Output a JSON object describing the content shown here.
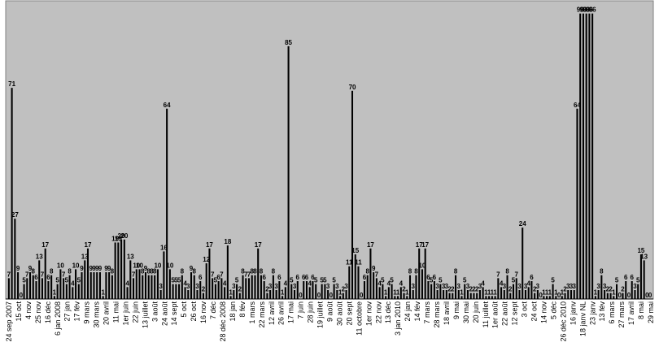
{
  "chart_data": {
    "type": "bar",
    "title": "",
    "xlabel": "",
    "ylabel": "",
    "ylim": [
      0,
      100
    ],
    "grid": false,
    "legend": "none",
    "bar_color": "#000000",
    "plot_background": "#c0c0c0",
    "values": [
      7,
      71,
      27,
      9,
      0,
      5,
      7,
      9,
      8,
      6,
      13,
      7,
      17,
      6,
      8,
      1,
      5,
      10,
      7,
      5,
      8,
      4,
      10,
      5,
      9,
      13,
      17,
      9,
      9,
      9,
      9,
      1,
      9,
      9,
      8,
      19,
      19,
      20,
      20,
      4,
      13,
      7,
      10,
      10,
      8,
      9,
      8,
      8,
      8,
      10,
      3,
      16,
      64,
      10,
      5,
      5,
      5,
      8,
      4,
      3,
      9,
      8,
      3,
      6,
      2,
      12,
      17,
      7,
      5,
      6,
      7,
      4,
      18,
      1,
      3,
      5,
      2,
      8,
      7,
      7,
      8,
      8,
      17,
      8,
      6,
      2,
      3,
      8,
      3,
      6,
      1,
      4,
      85,
      5,
      3,
      6,
      0,
      6,
      6,
      4,
      6,
      5,
      0,
      5,
      5,
      3,
      0,
      5,
      3,
      1,
      2,
      3,
      11,
      70,
      15,
      11,
      0,
      6,
      8,
      17,
      9,
      7,
      4,
      5,
      1,
      4,
      5,
      1,
      1,
      4,
      2,
      1,
      8,
      3,
      8,
      17,
      10,
      17,
      6,
      5,
      6,
      3,
      5,
      3,
      3,
      2,
      2,
      8,
      3,
      1,
      5,
      3,
      2,
      2,
      2,
      3,
      4,
      1,
      1,
      1,
      1,
      7,
      4,
      3,
      8,
      2,
      5,
      7,
      3,
      24,
      3,
      4,
      6,
      2,
      3,
      0,
      1,
      1,
      1,
      5,
      1,
      0,
      1,
      2,
      3,
      3,
      3,
      64,
      96,
      96,
      96,
      96,
      96,
      1,
      3,
      8,
      3,
      2,
      2,
      1,
      5,
      0,
      2,
      6,
      0,
      6,
      3,
      5,
      15,
      13,
      0,
      0
    ],
    "tick_labels": [
      "24 sep 2007",
      "15 oct",
      "4 nov",
      "25 nov",
      "16 déc",
      "6 jan 2008",
      "27 jan",
      "17 fév",
      "9 mars",
      "30 mars",
      "20 avril",
      "11 mai",
      "1er juin",
      "22 juin",
      "13 juillet",
      "3 août",
      "24 août",
      "14 sept",
      "5 oct",
      "26 oct",
      "16 nov",
      "7 déc",
      "28 déc 2008",
      "18 jan",
      "8 fév",
      "1 mars",
      "22 mars",
      "12 avril",
      "26 avril",
      "17 mai",
      "7 juin",
      "28 juin",
      "19 juillet",
      "9 août",
      "30 août",
      "20 sept",
      "11 octobre",
      "1er nov",
      "22 nov",
      "13 déc",
      "3 jan 2010",
      "24 jan",
      "14 fév",
      "7 mars",
      "28 mars",
      "18 avril",
      "9 mai",
      "30 mai",
      "20 juin",
      "11 juillet",
      "1er août",
      "22 août",
      "12 sept",
      "3 oct",
      "24 oct",
      "14 nov",
      "5 déc",
      "26 déc 2010",
      "16 janv",
      "18 janv NL",
      "23 janv",
      "13 fév",
      "6 mars",
      "27 mars",
      "17 avril",
      "8 mai",
      "29 mai"
    ]
  }
}
